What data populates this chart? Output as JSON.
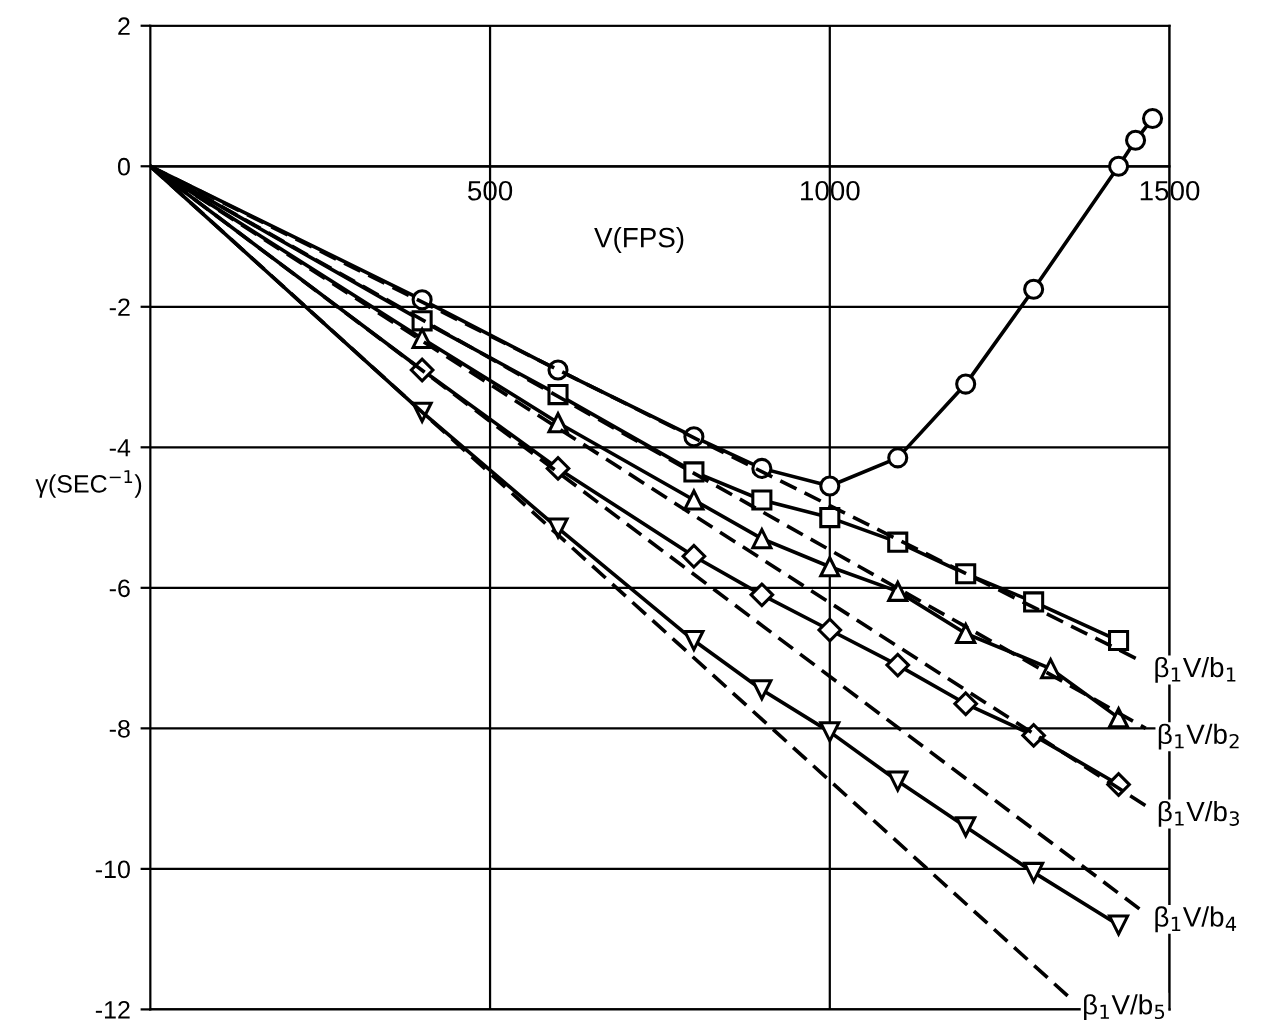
{
  "chart_data": {
    "type": "line",
    "xlabel": "V(FPS)",
    "ylabel": "γ(SEC$^{−1}$)",
    "xlim": [
      0,
      1500
    ],
    "ylim": [
      -12,
      2
    ],
    "xticks": [
      500,
      1000,
      1500
    ],
    "yticks": [
      2,
      0,
      -2,
      -4,
      -6,
      -8,
      -10,
      -12
    ],
    "grid": true,
    "legend": false,
    "series": [
      {
        "color": "#000000",
        "marker": "circle",
        "line_style": "solid",
        "x": [
          0,
          400,
          600,
          800,
          900,
          1000,
          1100,
          1200,
          1300,
          1425,
          1450,
          1475
        ],
        "values": [
          0,
          -1.9,
          -2.9,
          -3.85,
          -4.3,
          -4.55,
          -4.15,
          -3.1,
          -1.75,
          0,
          0.37,
          0.68
        ]
      },
      {
        "color": "#000000",
        "marker": "square",
        "line_style": "solid",
        "x": [
          0,
          400,
          600,
          800,
          900,
          1000,
          1100,
          1200,
          1300,
          1425
        ],
        "values": [
          0,
          -2.2,
          -3.25,
          -4.35,
          -4.75,
          -5.0,
          -5.35,
          -5.8,
          -6.2,
          -6.75
        ]
      },
      {
        "color": "#000000",
        "marker": "triangle",
        "line_style": "solid",
        "x": [
          0,
          400,
          600,
          800,
          900,
          1000,
          1100,
          1200,
          1325,
          1425
        ],
        "values": [
          0,
          -2.45,
          -3.65,
          -4.75,
          -5.3,
          -5.7,
          -6.05,
          -6.65,
          -7.15,
          -7.85
        ]
      },
      {
        "color": "#000000",
        "marker": "diamond",
        "line_style": "solid",
        "x": [
          0,
          400,
          600,
          800,
          900,
          1000,
          1100,
          1200,
          1300,
          1425
        ],
        "values": [
          0,
          -2.9,
          -4.3,
          -5.55,
          -6.1,
          -6.6,
          -7.1,
          -7.65,
          -8.1,
          -8.8
        ]
      },
      {
        "color": "#000000",
        "marker": "triangle_down",
        "line_style": "solid",
        "x": [
          0,
          400,
          600,
          800,
          900,
          1000,
          1100,
          1200,
          1300,
          1425
        ],
        "values": [
          0,
          -3.5,
          -5.15,
          -6.75,
          -7.45,
          -8.05,
          -8.75,
          -9.4,
          -10.05,
          -10.8
        ]
      },
      {
        "name": "β$_{1}$V/b$_{1}$",
        "color": "#000000",
        "marker": "none",
        "line_style": "dashed",
        "x": [
          0,
          1460
        ],
        "values": [
          0,
          -7.05
        ]
      },
      {
        "name": "β$_{1}$V/b$_{2}$",
        "color": "#000000",
        "marker": "none",
        "line_style": "dashed",
        "x": [
          0,
          1465
        ],
        "values": [
          0,
          -8.0
        ]
      },
      {
        "name": "β$_{1}$V/b$_{3}$",
        "color": "#000000",
        "marker": "none",
        "line_style": "dashed",
        "x": [
          0,
          1465
        ],
        "values": [
          0,
          -9.1
        ]
      },
      {
        "name": "β$_{1}$V/b$_{4}$",
        "color": "#000000",
        "marker": "none",
        "line_style": "dashed",
        "x": [
          0,
          1460
        ],
        "values": [
          0,
          -10.6
        ]
      },
      {
        "name": "β$_{1}$V/b$_{5}$",
        "color": "#000000",
        "marker": "none",
        "line_style": "dashed",
        "x": [
          0,
          1355
        ],
        "values": [
          0,
          -11.85
        ]
      }
    ]
  }
}
